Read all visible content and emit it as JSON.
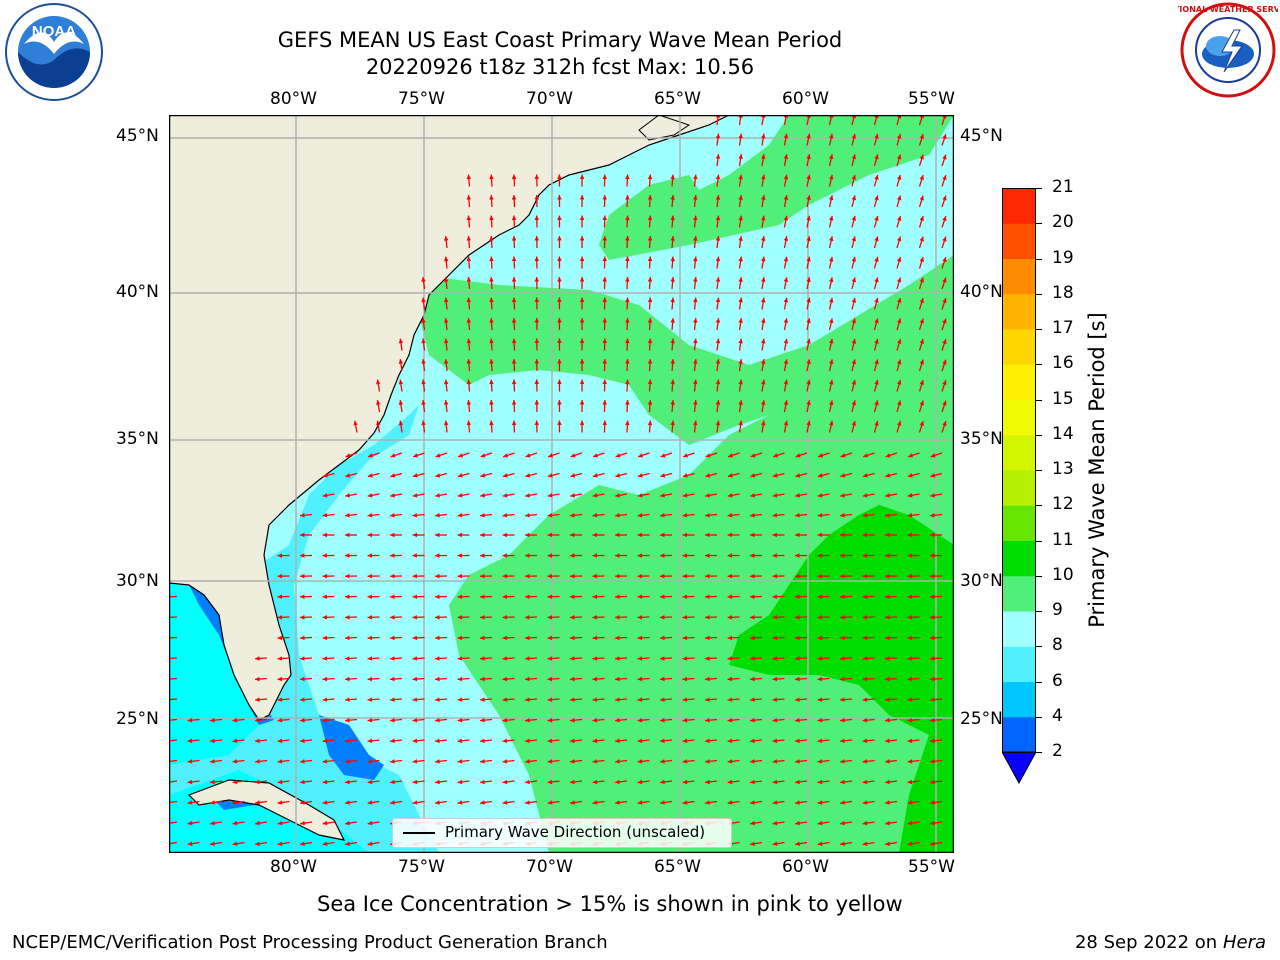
{
  "title_line1": "GEFS MEAN US East Coast Primary Wave Mean Period",
  "title_line2": "20220926 t18z 312h fcst   Max: 10.56",
  "map": {
    "lon_labels": [
      "80°W",
      "75°W",
      "70°W",
      "65°W",
      "60°W",
      "55°W"
    ],
    "lat_labels": [
      "45°N",
      "40°N",
      "35°N",
      "30°N",
      "25°N"
    ],
    "land_color": "#efeedd",
    "arrow_color": "#ff0000",
    "grid_color": "#b0b0b0"
  },
  "colorbar": {
    "label": "Primary Wave Mean Period [s]",
    "ticks": [
      "2",
      "4",
      "6",
      "8",
      "9",
      "10",
      "11",
      "12",
      "13",
      "14",
      "15",
      "16",
      "17",
      "18",
      "19",
      "20",
      "21"
    ],
    "colors": [
      "#0066ff",
      "#00c8ff",
      "#50f0ff",
      "#a0ffff",
      "#50f078",
      "#00dc00",
      "#64e600",
      "#b4f000",
      "#d2f500",
      "#f0fa00",
      "#ffef00",
      "#ffd700",
      "#ffb400",
      "#ff8c00",
      "#ff5000",
      "#ff2800"
    ],
    "extend_color": "#0a00ff"
  },
  "legend": {
    "label": "Primary Wave Direction (unscaled)"
  },
  "note": "Sea Ice Concentration > 15% is shown in pink to yellow",
  "footer_left": "NCEP/EMC/Verification Post Processing Product Generation Branch",
  "footer_right_date": "28 Sep 2022 on",
  "footer_right_host": "Hera",
  "logos": {
    "noaa": "NOAA",
    "nws": "NATIONAL WEATHER SERVICE"
  }
}
